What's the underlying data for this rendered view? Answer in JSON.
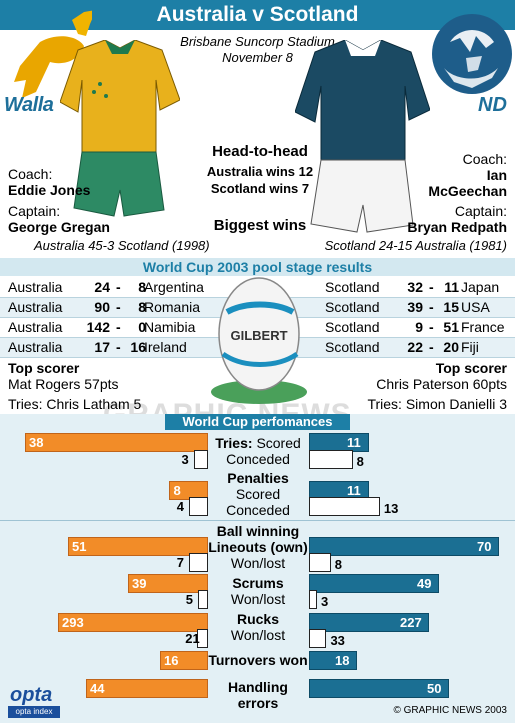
{
  "title": "Australia v Scotland",
  "venue": "Brisbane Suncorp Stadium",
  "date": "November 8",
  "logos": {
    "australia_text": "Walla",
    "scotland_text": "ND"
  },
  "head_to_head": {
    "title": "Head-to-head",
    "australia": "Australia wins 12",
    "scotland": "Scotland wins 7"
  },
  "biggest_wins": {
    "title": "Biggest wins",
    "australia": "Australia 45-3 Scotland (1998)",
    "scotland": "Scotland 24-15 Australia (1981)"
  },
  "australia": {
    "coach_label": "Coach:",
    "coach": "Eddie Jones",
    "captain_label": "Captain:",
    "captain": "George Gregan",
    "top_scorer_label": "Top scorer",
    "top_scorer": "Mat Rogers 57pts",
    "tries": "Tries: Chris Latham 5"
  },
  "scotland": {
    "coach_label": "Coach:",
    "coach_first": "Ian",
    "coach_last": "McGeechan",
    "captain_label": "Captain:",
    "captain": "Bryan Redpath",
    "top_scorer_label": "Top scorer",
    "top_scorer": "Chris Paterson 60pts",
    "tries": "Tries: Simon Danielli 3"
  },
  "pool_title": "World Cup 2003 pool stage results",
  "australia_results": [
    {
      "team": "Australia",
      "s1": "24",
      "s2": "8",
      "opp": "Argentina"
    },
    {
      "team": "Australia",
      "s1": "90",
      "s2": "8",
      "opp": "Romania"
    },
    {
      "team": "Australia",
      "s1": "142",
      "s2": "0",
      "opp": "Namibia"
    },
    {
      "team": "Australia",
      "s1": "17",
      "s2": "16",
      "opp": "Ireland"
    }
  ],
  "scotland_results": [
    {
      "team": "Scotland",
      "s1": "32",
      "s2": "11",
      "opp": "Japan"
    },
    {
      "team": "Scotland",
      "s1": "39",
      "s2": "15",
      "opp": "USA"
    },
    {
      "team": "Scotland",
      "s1": "9",
      "s2": "51",
      "opp": "France"
    },
    {
      "team": "Scotland",
      "s1": "22",
      "s2": "20",
      "opp": "Fiji"
    }
  ],
  "ball_text": "GILBERT",
  "watermark": "GRAPHIC NEWS",
  "performance_title": "World Cup perfomances",
  "chart_data": {
    "type": "bar",
    "title": "World Cup perfomances",
    "series": [
      {
        "name": "Australia",
        "color": "#f28c28"
      },
      {
        "name": "Scotland",
        "color": "#1b6f93"
      }
    ],
    "metrics": [
      {
        "label": "Tries: Scored",
        "australia": 38,
        "scotland": 11
      },
      {
        "label": "Tries: Conceded",
        "australia": 3,
        "scotland": 8
      },
      {
        "label": "Penalties Scored",
        "australia": 8,
        "scotland": 11
      },
      {
        "label": "Penalties Conceded",
        "australia": 4,
        "scotland": 13
      },
      {
        "label": "Ball winning Lineouts (own) Won",
        "australia": 51,
        "scotland": 70
      },
      {
        "label": "Ball winning Lineouts (own) Lost",
        "australia": 7,
        "scotland": 8
      },
      {
        "label": "Scrums Won",
        "australia": 39,
        "scotland": 49
      },
      {
        "label": "Scrums Lost",
        "australia": 5,
        "scotland": 3
      },
      {
        "label": "Rucks Won",
        "australia": 293,
        "scotland": 227
      },
      {
        "label": "Rucks Lost",
        "australia": 21,
        "scotland": 33
      },
      {
        "label": "Turnovers won",
        "australia": 16,
        "scotland": 18
      },
      {
        "label": "Handling errors",
        "australia": 44,
        "scotland": 50
      }
    ]
  },
  "labels": {
    "tries_scored_a": "Tries:",
    "tries_scored_b": "Scored",
    "conceded": "Conceded",
    "penalties": "Penalties",
    "scored": "Scored",
    "ball_winning": "Ball winning",
    "lineouts": "Lineouts (own)",
    "wonlost": "Won/lost",
    "scrums": "Scrums",
    "rucks": "Rucks",
    "turnovers": "Turnovers won",
    "handling": "Handling",
    "errors": "errors"
  },
  "source": {
    "opta": "opta",
    "opta_sub": "opta index"
  },
  "copyright": "© GRAPHIC NEWS 2003",
  "colors": {
    "accent": "#1d7fa6",
    "australia": "#f28c28",
    "scotland": "#1b6f93"
  }
}
